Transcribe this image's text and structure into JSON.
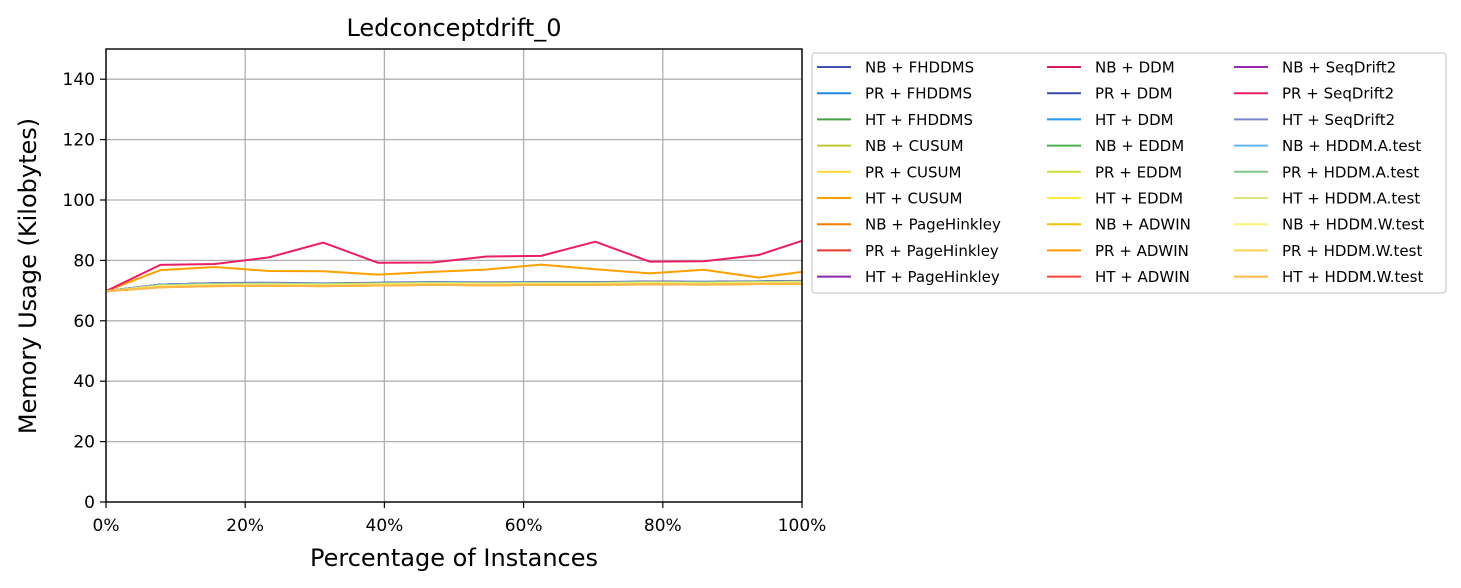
{
  "chart_data": {
    "type": "line",
    "title": "Ledconceptdrift_0",
    "xlabel": "Percentage of Instances",
    "ylabel": "Memory Usage (Kilobytes)",
    "xlim": [
      0,
      100
    ],
    "ylim": [
      0,
      150
    ],
    "x_ticks": [
      0,
      20,
      40,
      60,
      80,
      100
    ],
    "x_tick_labels": [
      "0%",
      "20%",
      "40%",
      "60%",
      "80%",
      "100%"
    ],
    "y_ticks": [
      0,
      20,
      40,
      60,
      80,
      100,
      120,
      140
    ],
    "y_tick_labels": [
      "0",
      "20",
      "40",
      "60",
      "80",
      "100",
      "120",
      "140"
    ],
    "grid": true,
    "legend_position": "outside-right",
    "legend_columns": 3,
    "x": [
      0,
      7.8,
      15.6,
      23.4,
      31.2,
      39.1,
      46.9,
      54.7,
      62.5,
      70.3,
      78.1,
      85.9,
      93.8,
      100
    ],
    "series": [
      {
        "name": "NB + FHDDMS",
        "color": "#3f51b5",
        "values": [
          69.8,
          72.0,
          72.5,
          72.6,
          72.4,
          72.6,
          72.8,
          72.7,
          72.8,
          72.8,
          73.0,
          72.9,
          73.1,
          73.2
        ]
      },
      {
        "name": "PR + FHDDMS",
        "color": "#1e88e5",
        "values": [
          69.8,
          72.0,
          72.4,
          72.5,
          72.3,
          72.5,
          72.7,
          72.6,
          72.7,
          72.7,
          72.9,
          72.8,
          73.0,
          73.1
        ]
      },
      {
        "name": "HT + FHDDMS",
        "color": "#43a047",
        "values": [
          69.8,
          71.8,
          72.2,
          72.3,
          72.2,
          72.4,
          72.6,
          72.5,
          72.6,
          72.6,
          72.8,
          72.7,
          72.9,
          73.0
        ]
      },
      {
        "name": "NB + CUSUM",
        "color": "#c0ca33",
        "values": [
          69.8,
          71.5,
          71.9,
          72.0,
          71.9,
          72.1,
          72.3,
          72.2,
          72.3,
          72.3,
          72.5,
          72.4,
          72.6,
          72.7
        ]
      },
      {
        "name": "PR + CUSUM",
        "color": "#fdd835",
        "values": [
          69.8,
          71.2,
          71.6,
          71.7,
          71.6,
          71.8,
          72.0,
          71.9,
          72.0,
          72.0,
          72.2,
          72.1,
          72.3,
          72.4
        ]
      },
      {
        "name": "HT + CUSUM",
        "color": "#ffa000",
        "values": [
          69.8,
          76.8,
          77.8,
          76.5,
          76.4,
          75.3,
          76.2,
          77.0,
          78.6,
          77.1,
          75.7,
          76.9,
          74.3,
          76.2
        ]
      },
      {
        "name": "NB + PageHinkley",
        "color": "#f57c00",
        "values": [
          69.8,
          71.7,
          72.1,
          72.2,
          72.1,
          72.3,
          72.5,
          72.4,
          72.5,
          72.5,
          72.7,
          72.6,
          72.8,
          72.9
        ]
      },
      {
        "name": "PR + PageHinkley",
        "color": "#e53935",
        "values": [
          69.8,
          71.7,
          72.1,
          72.2,
          72.1,
          72.3,
          72.5,
          72.4,
          72.5,
          72.5,
          72.7,
          72.6,
          72.8,
          72.9
        ]
      },
      {
        "name": "HT + PageHinkley",
        "color": "#8e24aa",
        "values": [
          69.8,
          72.0,
          72.4,
          72.5,
          72.3,
          72.5,
          72.7,
          72.6,
          72.7,
          72.7,
          72.9,
          72.8,
          73.0,
          73.1
        ]
      },
      {
        "name": "NB + DDM",
        "color": "#d81b60",
        "values": [
          69.8,
          72.0,
          72.4,
          72.5,
          72.3,
          72.5,
          72.7,
          72.6,
          72.7,
          72.7,
          72.9,
          72.8,
          73.0,
          73.1
        ]
      },
      {
        "name": "PR + DDM",
        "color": "#3949ab",
        "values": [
          69.8,
          72.0,
          72.4,
          72.5,
          72.3,
          72.5,
          72.7,
          72.6,
          72.7,
          72.7,
          72.9,
          72.8,
          73.0,
          73.1
        ]
      },
      {
        "name": "HT + DDM",
        "color": "#2196f3",
        "values": [
          69.8,
          71.9,
          72.3,
          72.4,
          72.3,
          72.4,
          72.6,
          72.5,
          72.6,
          72.6,
          72.8,
          72.7,
          72.9,
          73.0
        ]
      },
      {
        "name": "NB + EDDM",
        "color": "#4caf50",
        "values": [
          69.8,
          71.8,
          72.2,
          72.3,
          72.2,
          72.4,
          72.6,
          72.5,
          72.6,
          72.6,
          72.8,
          72.7,
          72.9,
          73.0
        ]
      },
      {
        "name": "PR + EDDM",
        "color": "#cddc39",
        "values": [
          69.8,
          71.6,
          72.0,
          72.1,
          72.0,
          72.2,
          72.4,
          72.3,
          72.4,
          72.4,
          72.6,
          72.5,
          72.7,
          72.8
        ]
      },
      {
        "name": "HT + EDDM",
        "color": "#ffeb3b",
        "values": [
          69.8,
          71.4,
          71.8,
          71.9,
          71.8,
          72.0,
          72.2,
          72.1,
          72.2,
          72.2,
          72.4,
          72.3,
          72.5,
          72.6
        ]
      },
      {
        "name": "NB + ADWIN",
        "color": "#ffc107",
        "values": [
          69.8,
          71.1,
          71.5,
          71.6,
          71.5,
          71.7,
          71.9,
          71.8,
          71.9,
          71.9,
          72.1,
          72.0,
          72.2,
          72.3
        ]
      },
      {
        "name": "PR + ADWIN",
        "color": "#ff9800",
        "values": [
          69.8,
          71.1,
          71.5,
          71.6,
          71.5,
          71.7,
          71.9,
          71.8,
          71.9,
          71.9,
          72.1,
          72.0,
          72.2,
          72.3
        ]
      },
      {
        "name": "HT + ADWIN",
        "color": "#f44336",
        "values": [
          69.8,
          71.9,
          72.3,
          72.4,
          72.3,
          72.4,
          72.6,
          72.5,
          72.6,
          72.6,
          72.8,
          72.7,
          72.9,
          73.0
        ]
      },
      {
        "name": "NB + SeqDrift2",
        "color": "#9c27b0",
        "values": [
          69.8,
          72.0,
          72.4,
          72.5,
          72.3,
          72.5,
          72.7,
          72.6,
          72.7,
          72.7,
          72.9,
          72.8,
          73.0,
          73.1
        ]
      },
      {
        "name": "PR + SeqDrift2",
        "color": "#e91e63",
        "values": [
          69.8,
          78.5,
          78.8,
          81.0,
          85.9,
          79.2,
          79.3,
          81.3,
          81.5,
          86.2,
          79.6,
          79.7,
          81.8,
          86.5
        ]
      },
      {
        "name": "HT + SeqDrift2",
        "color": "#7986cb",
        "values": [
          69.8,
          72.0,
          72.4,
          72.5,
          72.3,
          72.5,
          72.7,
          72.6,
          72.7,
          72.7,
          72.9,
          72.8,
          73.0,
          73.1
        ]
      },
      {
        "name": "NB + HDDM.A.test",
        "color": "#64b5f6",
        "values": [
          69.8,
          71.9,
          72.3,
          72.4,
          72.3,
          72.4,
          72.6,
          72.5,
          72.6,
          72.6,
          72.8,
          72.7,
          72.9,
          73.0
        ]
      },
      {
        "name": "PR + HDDM.A.test",
        "color": "#81c784",
        "values": [
          69.8,
          71.8,
          72.2,
          72.3,
          72.2,
          72.4,
          72.6,
          72.5,
          72.6,
          72.6,
          72.8,
          72.7,
          72.9,
          73.0
        ]
      },
      {
        "name": "HT + HDDM.A.test",
        "color": "#dce775",
        "values": [
          69.8,
          71.6,
          72.0,
          72.1,
          72.0,
          72.2,
          72.4,
          72.3,
          72.4,
          72.4,
          72.6,
          72.5,
          72.7,
          72.8
        ]
      },
      {
        "name": "NB + HDDM.W.test",
        "color": "#fff176",
        "values": [
          69.8,
          71.4,
          71.8,
          71.9,
          71.8,
          72.0,
          72.2,
          72.1,
          72.2,
          72.2,
          72.4,
          72.3,
          72.5,
          72.6
        ]
      },
      {
        "name": "PR + HDDM.W.test",
        "color": "#ffd54f",
        "values": [
          69.8,
          71.2,
          71.6,
          71.7,
          71.6,
          71.8,
          72.0,
          71.9,
          72.0,
          72.0,
          72.2,
          72.1,
          72.3,
          72.4
        ]
      },
      {
        "name": "HT + HDDM.W.test",
        "color": "#ffb74d",
        "values": [
          69.8,
          71.1,
          71.5,
          71.6,
          71.5,
          71.7,
          71.9,
          71.8,
          71.9,
          71.9,
          72.1,
          72.0,
          72.2,
          72.3
        ]
      }
    ]
  }
}
